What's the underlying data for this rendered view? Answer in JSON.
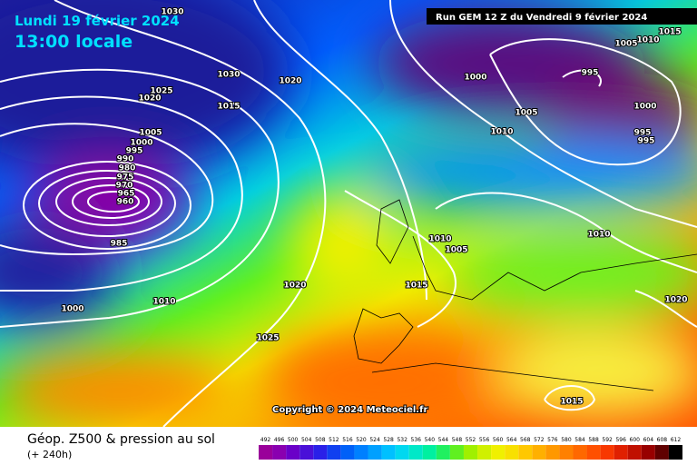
{
  "header": {
    "date": "Lundi 19 février 2024",
    "time": "13:00 locale",
    "run": "Run GEM 12 Z du Vendredi 9 février 2024"
  },
  "copyright": "Copyright © 2024 Meteociel.fr",
  "footer": {
    "title": "Géop. Z500 & pression au sol",
    "lead": "(+ 240h)"
  },
  "isobars": [
    1030,
    1030,
    1025,
    1020,
    1015,
    1020,
    1005,
    1000,
    995,
    990,
    980,
    975,
    970,
    965,
    960,
    985,
    1010,
    1000,
    1020,
    1025,
    1015,
    1010,
    1005,
    1010,
    1005,
    1000,
    995,
    1000,
    995,
    995,
    1005,
    1010,
    1015,
    1010,
    1020,
    1015
  ],
  "scale": {
    "labels": [
      492,
      496,
      500,
      504,
      508,
      512,
      516,
      520,
      524,
      528,
      532,
      536,
      540,
      544,
      548,
      552,
      556,
      560,
      564,
      568,
      572,
      576,
      580,
      584,
      588,
      592,
      596,
      600,
      604,
      608,
      612
    ],
    "colors": [
      "#9a009a",
      "#8a00b0",
      "#6a00c8",
      "#4a10d8",
      "#2a20e8",
      "#1040f0",
      "#0060f8",
      "#0080ff",
      "#00a0ff",
      "#00c0ff",
      "#00d8f0",
      "#00e8c8",
      "#00f0a0",
      "#20f060",
      "#60f020",
      "#a0f000",
      "#d0f000",
      "#f0f000",
      "#f8e000",
      "#ffc800",
      "#ffb000",
      "#ff9800",
      "#ff8000",
      "#ff6800",
      "#ff5000",
      "#f83800",
      "#e02000",
      "#c01000",
      "#980000",
      "#600000",
      "#000000"
    ]
  }
}
